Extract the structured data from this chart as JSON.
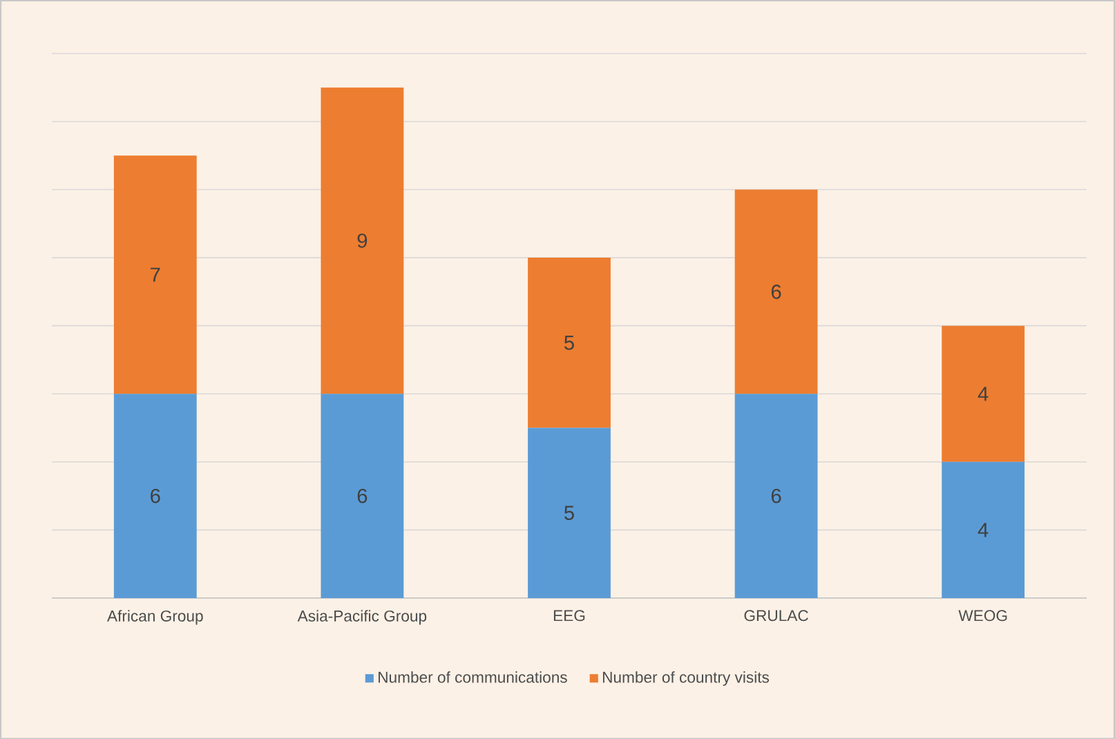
{
  "chart_data": {
    "type": "bar",
    "stacked": true,
    "categories": [
      "African Group",
      "Asia-Pacific Group",
      "EEG",
      "GRULAC",
      "WEOG"
    ],
    "series": [
      {
        "name": "Number of communications",
        "color": "#5b9bd5",
        "values": [
          6,
          6,
          5,
          6,
          4
        ],
        "value_labels": [
          "6",
          "6",
          "5",
          "6",
          "4"
        ]
      },
      {
        "name": "Number of country visits",
        "color": "#ed7d31",
        "values": [
          7,
          9,
          5,
          6,
          4
        ],
        "value_labels": [
          "7",
          "9",
          "5",
          "6",
          "4"
        ]
      }
    ],
    "tick_labels": "x",
    "grid": "y",
    "legend": "bottom"
  }
}
